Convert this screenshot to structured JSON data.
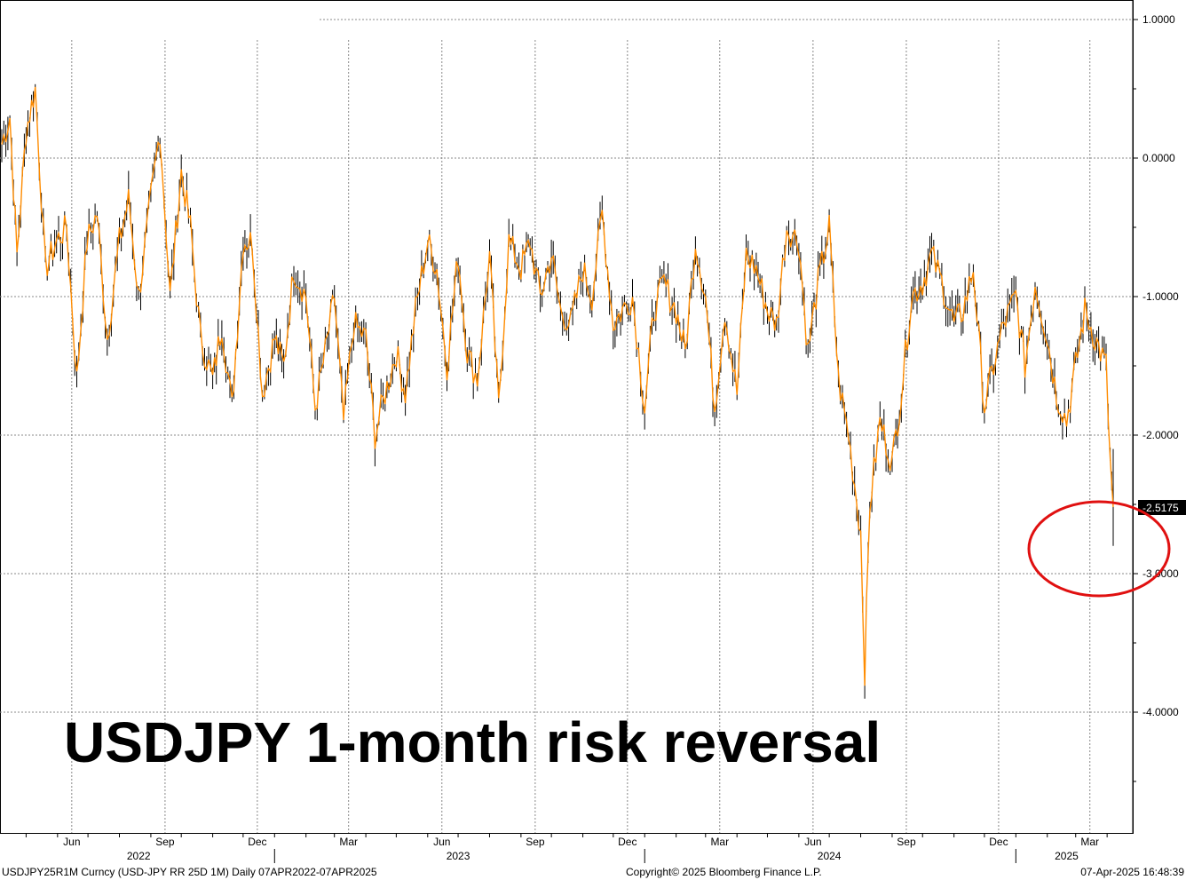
{
  "chart_data": {
    "type": "line",
    "title": "USDJPY 1-month risk reversal",
    "ylim": [
      -4.8,
      1.1
    ],
    "y_ticks": [
      "1.0000",
      "0.0000",
      "-1.0000",
      "-2.0000",
      "-3.0000",
      "-4.0000"
    ],
    "y_tick_values": [
      1.0,
      0.0,
      -1.0,
      -2.0,
      -3.0,
      -4.0
    ],
    "x_month_labels": [
      "Jun",
      "Sep",
      "Dec",
      "Mar",
      "Jun",
      "Sep",
      "Dec",
      "Mar",
      "Jun",
      "Sep",
      "Dec",
      "Mar"
    ],
    "x_year_labels": [
      "2022",
      "2023",
      "2024",
      "2025"
    ],
    "last_value_label": "-2.5175",
    "grid": true,
    "series": [
      {
        "name": "",
        "color": "#ff8c00",
        "x": [
          "2022-04-07",
          "2022-04-15",
          "2022-04-22",
          "2022-05-01",
          "2022-05-10",
          "2022-05-20",
          "2022-05-31",
          "2022-06-10",
          "2022-06-20",
          "2022-06-30",
          "2022-07-10",
          "2022-07-20",
          "2022-08-01",
          "2022-08-10",
          "2022-08-20",
          "2022-09-01",
          "2022-09-10",
          "2022-09-20",
          "2022-10-01",
          "2022-10-10",
          "2022-10-20",
          "2022-11-01",
          "2022-11-10",
          "2022-11-20",
          "2022-12-01",
          "2022-12-10",
          "2022-12-20",
          "2023-01-01",
          "2023-01-10",
          "2023-01-20",
          "2023-02-01",
          "2023-02-10",
          "2023-02-20",
          "2023-03-01",
          "2023-03-10",
          "2023-03-20",
          "2023-04-01",
          "2023-04-10",
          "2023-04-20",
          "2023-05-01",
          "2023-05-10",
          "2023-05-20",
          "2023-06-01",
          "2023-06-10",
          "2023-06-20",
          "2023-07-01",
          "2023-07-10",
          "2023-07-20",
          "2023-08-01",
          "2023-08-10",
          "2023-08-20",
          "2023-09-01",
          "2023-09-10",
          "2023-09-20",
          "2023-10-01",
          "2023-10-10",
          "2023-10-20",
          "2023-11-01",
          "2023-11-10",
          "2023-11-20",
          "2023-12-01",
          "2023-12-10",
          "2023-12-20",
          "2024-01-01",
          "2024-01-10",
          "2024-01-20",
          "2024-02-01",
          "2024-02-10",
          "2024-02-20",
          "2024-03-01",
          "2024-03-10",
          "2024-03-20",
          "2024-04-01",
          "2024-04-10",
          "2024-04-20",
          "2024-05-01",
          "2024-05-10",
          "2024-05-20",
          "2024-06-01",
          "2024-06-10",
          "2024-06-20",
          "2024-07-01",
          "2024-07-10",
          "2024-07-20",
          "2024-08-01",
          "2024-08-05",
          "2024-08-10",
          "2024-08-20",
          "2024-09-01",
          "2024-09-10",
          "2024-09-20",
          "2024-10-01",
          "2024-10-10",
          "2024-10-20",
          "2024-11-01",
          "2024-11-10",
          "2024-11-20",
          "2024-12-01",
          "2024-12-10",
          "2024-12-20",
          "2025-01-01",
          "2025-01-10",
          "2025-01-20",
          "2025-02-01",
          "2025-02-10",
          "2025-02-20",
          "2025-03-01",
          "2025-03-10",
          "2025-03-20",
          "2025-03-31",
          "2025-04-04",
          "2025-04-07"
        ],
        "values": [
          0.1,
          0.3,
          -0.7,
          0.2,
          0.5,
          -0.8,
          -0.6,
          -0.5,
          -1.6,
          -0.6,
          -0.4,
          -1.3,
          -0.6,
          -0.3,
          -1.0,
          -0.3,
          0.2,
          -1.0,
          -0.1,
          -0.5,
          -1.3,
          -1.6,
          -1.2,
          -1.8,
          -0.6,
          -0.6,
          -1.7,
          -1.3,
          -1.5,
          -0.8,
          -1.0,
          -1.8,
          -1.4,
          -1.0,
          -1.9,
          -1.2,
          -1.3,
          -2.0,
          -1.7,
          -1.4,
          -1.7,
          -1.1,
          -0.6,
          -0.8,
          -1.5,
          -0.7,
          -1.4,
          -1.6,
          -0.7,
          -1.8,
          -0.6,
          -0.8,
          -0.6,
          -1.0,
          -0.7,
          -1.1,
          -1.2,
          -0.8,
          -1.0,
          -0.4,
          -1.2,
          -1.1,
          -1.0,
          -1.8,
          -1.1,
          -0.9,
          -1.1,
          -1.4,
          -0.6,
          -1.0,
          -1.8,
          -1.1,
          -1.7,
          -0.7,
          -0.8,
          -1.1,
          -1.2,
          -0.5,
          -0.6,
          -1.4,
          -0.9,
          -0.5,
          -1.6,
          -2.0,
          -2.7,
          -3.7,
          -2.5,
          -1.9,
          -2.2,
          -1.7,
          -1.0,
          -0.9,
          -0.7,
          -0.9,
          -1.2,
          -1.1,
          -0.8,
          -1.8,
          -1.5,
          -1.2,
          -1.0,
          -1.5,
          -0.9,
          -1.3,
          -1.7,
          -1.9,
          -1.5,
          -1.1,
          -1.3,
          -1.5,
          -2.2,
          -2.52
        ]
      }
    ]
  },
  "footer": {
    "left": "USDJPY25R1M Curncy (USD-JPY RR 25D 1M)  Daily 07APR2022-07APR2025",
    "center": "Copyright© 2025 Bloomberg Finance L.P.",
    "right": "07-Apr-2025 16:48:39"
  },
  "annotation": {
    "circle_color": "#e01010"
  }
}
